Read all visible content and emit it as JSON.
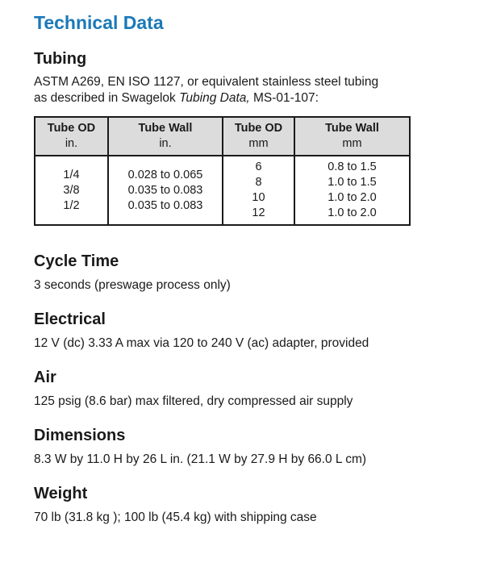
{
  "title": "Technical Data",
  "tubing": {
    "heading": "Tubing",
    "desc_line1": "ASTM A269, EN ISO 1127, or equivalent stainless steel tubing",
    "desc_line2_prefix": "as described in Swagelok ",
    "desc_line2_italic": "Tubing Data,",
    "desc_line2_suffix": " MS-01-107:",
    "table": {
      "headers": [
        {
          "label": "Tube OD",
          "unit": "in."
        },
        {
          "label": "Tube Wall",
          "unit": "in."
        },
        {
          "label": "Tube OD",
          "unit": "mm"
        },
        {
          "label": "Tube Wall",
          "unit": "mm"
        }
      ],
      "col_in_od": [
        "1/4",
        "3/8",
        "1/2"
      ],
      "col_in_wall": [
        "0.028 to 0.065",
        "0.035 to 0.083",
        "0.035 to 0.083"
      ],
      "col_mm_od": [
        "6",
        "8",
        "10",
        "12"
      ],
      "col_mm_wall": [
        "0.8 to 1.5",
        "1.0 to 1.5",
        "1.0 to 2.0",
        "1.0 to 2.0"
      ]
    }
  },
  "cycle_time": {
    "heading": "Cycle Time",
    "text": "3 seconds (preswage process only)"
  },
  "electrical": {
    "heading": "Electrical",
    "text": "12 V (dc) 3.33 A max via 120 to 240 V (ac) adapter, provided"
  },
  "air": {
    "heading": "Air",
    "text": "125 psig (8.6 bar) max filtered, dry compressed air supply"
  },
  "dimensions": {
    "heading": "Dimensions",
    "text": "8.3 W by 11.0 H by 26 L in. (21.1 W by 27.9 H by 66.0 L cm)"
  },
  "weight": {
    "heading": "Weight",
    "text": "70 lb (31.8 kg ); 100 lb (45.4 kg) with shipping case"
  }
}
